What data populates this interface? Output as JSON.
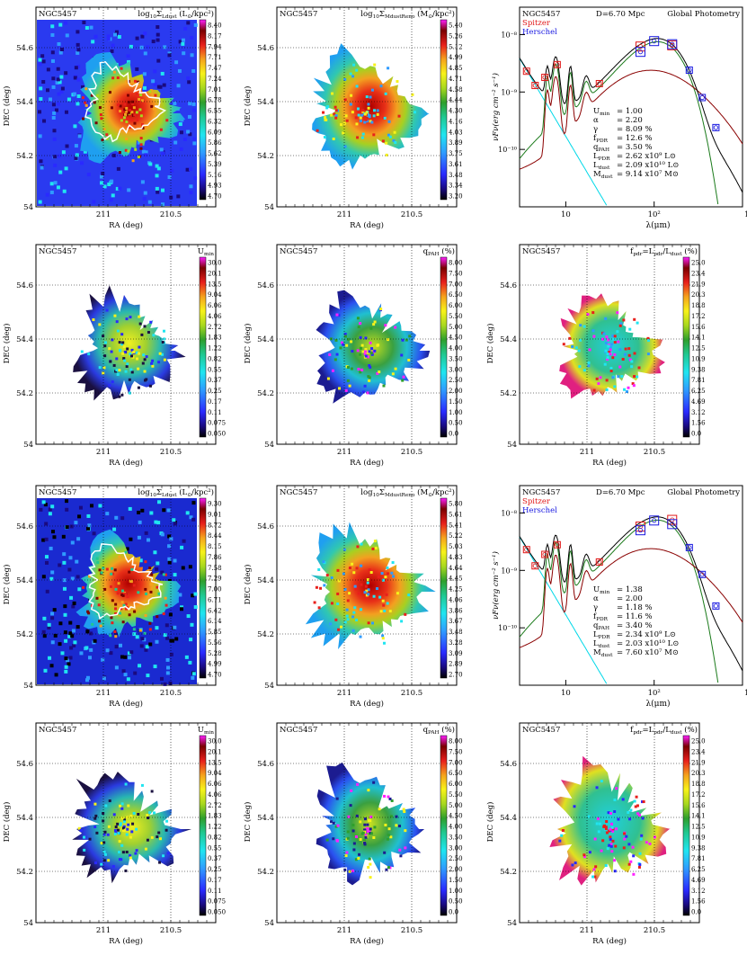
{
  "galaxy": "NGC5457",
  "colorbars": {
    "sigma_ldust_1": {
      "label_main": "log",
      "label_sub": "10",
      "label_rest": "Σ",
      "label_sub2": "Ldust",
      "label_unit": " (L",
      "label_unit2": "⊙",
      "label_unit3": "/kpc²)",
      "ticks": [
        "8.40",
        "8.17",
        "7.94",
        "7.71",
        "7.47",
        "7.24",
        "7.01",
        "6.78",
        "6.55",
        "6.32",
        "6.09",
        "5.86",
        "5.62",
        "5.39",
        "5.16",
        "4.93",
        "4.70"
      ]
    },
    "sigma_mdust_1": {
      "label_main": "log",
      "label_sub": "10",
      "label_rest": "Σ",
      "label_sub2": "MdustReno",
      "label_unit": " (M",
      "label_unit2": "⊙",
      "label_unit3": "/kpc²)",
      "ticks": [
        "5.40",
        "5.26",
        "5.12",
        "4.99",
        "4.85",
        "4.71",
        "4.58",
        "4.44",
        "4.30",
        "4.16",
        "4.03",
        "3.89",
        "3.75",
        "3.61",
        "3.48",
        "3.34",
        "3.20"
      ]
    },
    "umin": {
      "label_main": "U",
      "label_sub": "min",
      "ticks": [
        "30.0",
        "20.1",
        "13.5",
        "9.04",
        "6.06",
        "4.06",
        "2.72",
        "1.83",
        "1.22",
        "0.82",
        "0.55",
        "0.37",
        "0.25",
        "0.17",
        "0.11",
        "0.075",
        "0.050"
      ]
    },
    "qpah": {
      "label_main": "q",
      "label_sub": "PAH",
      "label_unit": " (%)",
      "ticks": [
        "8.00",
        "7.50",
        "7.00",
        "6.50",
        "6.00",
        "5.50",
        "5.00",
        "4.50",
        "4.00",
        "3.50",
        "3.00",
        "2.50",
        "2.00",
        "1.50",
        "1.00",
        "0.50",
        "0.0"
      ]
    },
    "fpdr": {
      "label_main": "f",
      "label_sub": "pdr",
      "label_rest": "=L",
      "label_sub2": "pdr",
      "label_mid": "/L",
      "label_sub3": "dust",
      "label_unit": " (%)",
      "ticks": [
        "25.0",
        "23.4",
        "21.9",
        "20.3",
        "18.8",
        "17.2",
        "15.6",
        "14.1",
        "12.5",
        "10.9",
        "9.38",
        "7.81",
        "6.25",
        "4.69",
        "3.12",
        "1.56",
        "0.0"
      ]
    },
    "sigma_ldust_2": {
      "label_main": "log",
      "label_sub": "10",
      "label_rest": "Σ",
      "label_sub2": "Ldust",
      "label_unit": " (L",
      "label_unit2": "⊙",
      "label_unit3": "/kpc²)",
      "ticks": [
        "9.30",
        "9.01",
        "8.72",
        "8.44",
        "8.15",
        "7.86",
        "7.58",
        "7.29",
        "7.00",
        "6.71",
        "6.42",
        "6.14",
        "5.85",
        "5.56",
        "5.28",
        "4.99",
        "4.70"
      ]
    },
    "sigma_mdust_2": {
      "label_main": "log",
      "label_sub": "10",
      "label_rest": "Σ",
      "label_sub2": "MdustReno",
      "label_unit": " (M",
      "label_unit2": "⊙",
      "label_unit3": "/kpc²)",
      "ticks": [
        "5.80",
        "5.61",
        "5.41",
        "5.22",
        "5.03",
        "4.83",
        "4.64",
        "4.45",
        "4.25",
        "4.06",
        "3.86",
        "3.67",
        "3.48",
        "3.28",
        "3.09",
        "2.89",
        "2.70"
      ]
    }
  },
  "map_axes": {
    "xlabel": "RA (deg)",
    "ylabel": "DEC (deg)",
    "xticks": [
      "211",
      "210.5"
    ],
    "yticks": [
      "54.6",
      "54.4",
      "54.2",
      "54"
    ]
  },
  "sed_1": {
    "distance": "D=6.70 Mpc",
    "mode": "Global Photometry",
    "legend": [
      "Spitzer",
      "Herschel"
    ],
    "xlabel": "λ(μm)",
    "ylabel": "νFν(erg cm⁻² s⁻¹)",
    "xticks": [
      "10",
      "10²"
    ],
    "yticks": [
      "10⁻⁸",
      "10⁻⁹",
      "10⁻¹⁰"
    ],
    "params": [
      {
        "name": "U_min",
        "val": "= 1.00"
      },
      {
        "name": "α",
        "val": "= 2.20"
      },
      {
        "name": "γ",
        "val": "= 8.09 %"
      },
      {
        "name": "f_PDR",
        "val": "= 12.6 %"
      },
      {
        "name": "q_PAH",
        "val": "= 3.50 %"
      },
      {
        "name": "L_PDR",
        "val": "= 2.62 x10⁹ L⊙"
      },
      {
        "name": "L_dust",
        "val": "= 2.09 x10¹⁰ L⊙"
      },
      {
        "name": "M_dust",
        "val": "= 9.14 x10⁷ M⊙"
      }
    ]
  },
  "sed_2": {
    "distance": "D=6.70 Mpc",
    "mode": "Global Photometry",
    "legend": [
      "Spitzer",
      "Herschel"
    ],
    "xlabel": "λ(μm)",
    "ylabel": "νFν(erg cm⁻² s⁻¹)",
    "xticks": [
      "10",
      "10²"
    ],
    "yticks": [
      "10⁻⁸",
      "10⁻⁹",
      "10⁻¹⁰"
    ],
    "params": [
      {
        "name": "U_min",
        "val": "= 1.38"
      },
      {
        "name": "α",
        "val": "= 2.00"
      },
      {
        "name": "γ",
        "val": "= 1.18 %"
      },
      {
        "name": "f_PDR",
        "val": "= 11.6 %"
      },
      {
        "name": "q_PAH",
        "val": "= 3.40 %"
      },
      {
        "name": "L_PDR",
        "val": "= 2.34 x10⁹ L⊙"
      },
      {
        "name": "L_dust",
        "val": "= 2.03 x10¹⁰ L⊙"
      },
      {
        "name": "M_dust",
        "val": "= 7.60 x10⁷ M⊙"
      }
    ]
  },
  "chart_data": [
    {
      "type": "scatter",
      "panel": "sed_1",
      "xscale": "log",
      "yscale": "log",
      "xlim": [
        3,
        1000
      ],
      "ylim": [
        1e-11,
        3e-08
      ],
      "series": [
        {
          "name": "Spitzer",
          "x": [
            3.6,
            4.5,
            5.8,
            8.0,
            24,
            70,
            160
          ],
          "y": [
            2.3e-09,
            1.3e-09,
            1.8e-09,
            3e-09,
            1.4e-09,
            6.2e-09,
            6.5e-09
          ]
        },
        {
          "name": "Herschel",
          "x": [
            70,
            100,
            160,
            250,
            350,
            500
          ],
          "y": [
            5e-09,
            7.7e-09,
            6.8e-09,
            2.4e-09,
            8e-10,
            2.4e-10
          ]
        }
      ]
    },
    {
      "type": "scatter",
      "panel": "sed_2",
      "xscale": "log",
      "yscale": "log",
      "xlim": [
        3,
        1000
      ],
      "ylim": [
        1e-11,
        3e-08
      ],
      "series": [
        {
          "name": "Spitzer",
          "x": [
            3.6,
            4.5,
            5.8,
            8.0,
            24,
            70,
            160
          ],
          "y": [
            2.3e-09,
            1.2e-09,
            1.9e-09,
            2.8e-09,
            1.4e-09,
            5.8e-09,
            7.6e-09
          ]
        },
        {
          "name": "Herschel",
          "x": [
            70,
            100,
            160,
            250,
            350,
            500
          ],
          "y": [
            5e-09,
            7.4e-09,
            6.4e-09,
            2.5e-09,
            8.5e-10,
            2.4e-10
          ]
        }
      ]
    }
  ]
}
